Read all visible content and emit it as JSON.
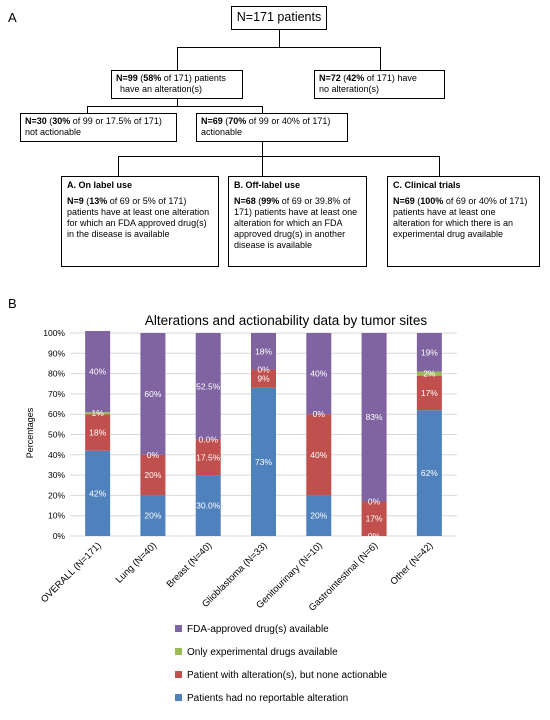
{
  "panel_a": {
    "letter": "A",
    "root": "N=171 patients",
    "alt": {
      "n": "N=99",
      "pct": "58%",
      "rest": " of 171) patients",
      "line2": "have an alteration(s)"
    },
    "noalt": {
      "n": "N=72",
      "pct": "42%",
      "rest": " of 171) have",
      "line2": "no alteration(s)"
    },
    "notact": {
      "n": "N=30",
      "pct": "30%",
      "rest": " of 99 or 17.5% of 171)",
      "line2": "not actionable"
    },
    "act": {
      "n": "N=69",
      "pct": "70%",
      "rest": " of 99 or 40% of 171)",
      "line2": "actionable"
    },
    "cat_a": {
      "title": "A.  On label use",
      "n": "N=9",
      "pct": "13%",
      "rest": " of 69 or 5% of 171)",
      "body": "patients have at least one alteration for which an FDA approved drug(s) in the disease is available"
    },
    "cat_b": {
      "title": "B.  Off-label use",
      "n": "N=68",
      "pct": "99%",
      "rest": " of 69 or 39.8% of 171)",
      "body": "patients have at least one alteration for which an FDA approved drug(s) in another disease is available"
    },
    "cat_c": {
      "title": "C.  Clinical trials",
      "n": "N=69",
      "pct": "100%",
      "rest": " of 69 or 40% of 171)",
      "body": "patients have at least one alteration for which there is an experimental drug available"
    }
  },
  "panel_b": {
    "letter": "B"
  },
  "chart_data": {
    "type": "bar",
    "stacked": true,
    "title": "Alterations and actionability data by tumor sites",
    "ylabel": "Percentages",
    "ylim": [
      0,
      100
    ],
    "yticks": [
      "0%",
      "10%",
      "20%",
      "30%",
      "40%",
      "50%",
      "60%",
      "70%",
      "80%",
      "90%",
      "100%"
    ],
    "categories": [
      "OVERALL (N=171)",
      "Lung (N=40)",
      "Breast (N=40)",
      "Glioblastoma (N=33)",
      "Genitourinary (N=10)",
      "Gastrointestinal (N=6)",
      "Other (N=42)"
    ],
    "series": [
      {
        "name": "Patients had no reportable alteration",
        "color": "#4f81bd",
        "values": [
          42,
          20,
          30,
          73,
          20,
          0,
          62
        ],
        "labels": [
          "42%",
          "20%",
          "30.0%",
          "73%",
          "20%",
          "0%",
          "62%"
        ]
      },
      {
        "name": "Patient with alteration(s), but none actionable",
        "color": "#c0504d",
        "values": [
          18,
          20,
          17.5,
          9,
          40,
          17,
          17
        ],
        "labels": [
          "18%",
          "20%",
          "17.5%",
          "9%",
          "40%",
          "17%",
          "17%"
        ]
      },
      {
        "name": "Only experimental drugs available",
        "color": "#9bbb59",
        "values": [
          1,
          0,
          0,
          0,
          0,
          0,
          2
        ],
        "labels": [
          "1%",
          "0%",
          "0.0%",
          "0%",
          "0%",
          "0%",
          "2%"
        ]
      },
      {
        "name": "FDA-approved drug(s) available",
        "color": "#8064a2",
        "values": [
          40,
          60,
          52.5,
          18,
          40,
          83,
          19
        ],
        "labels": [
          "40%",
          "60%",
          "52.5%",
          "18%",
          "40%",
          "83%",
          "19%"
        ]
      }
    ],
    "legend_order": [
      3,
      2,
      1,
      0
    ],
    "legend_position": "bottom"
  }
}
